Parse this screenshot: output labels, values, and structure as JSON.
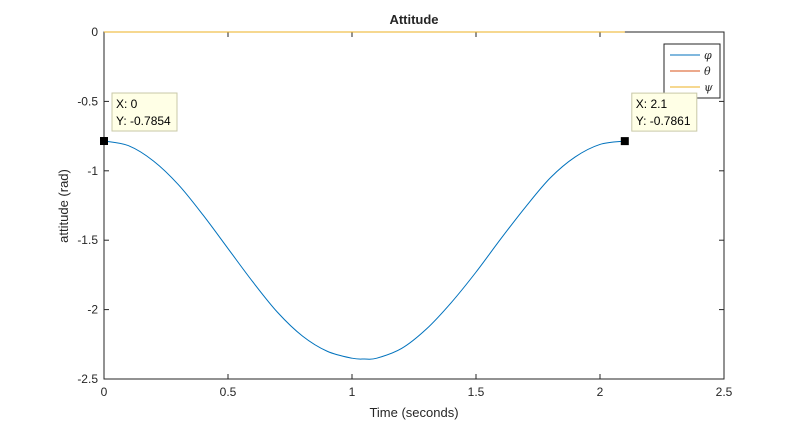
{
  "chart_data": {
    "type": "line",
    "title": "Attitude",
    "xlabel": "Time (seconds)",
    "ylabel": "attitude (rad)",
    "xlim": [
      0,
      2.5
    ],
    "ylim": [
      -2.5,
      0
    ],
    "x_ticks": [
      0,
      0.5,
      1,
      1.5,
      2,
      2.5
    ],
    "y_ticks": [
      0,
      -0.5,
      -1,
      -1.5,
      -2,
      -2.5
    ],
    "x_tick_labels": [
      "0",
      "0.5",
      "1",
      "1.5",
      "2",
      "2.5"
    ],
    "y_tick_labels": [
      "0",
      "-0.5",
      "-1",
      "-1.5",
      "-2",
      "-2.5"
    ],
    "grid": false,
    "legend_position": "top-right",
    "series": [
      {
        "name": "φ",
        "color": "#0072BD",
        "x": [
          0,
          0.1,
          0.2,
          0.3,
          0.4,
          0.5,
          0.6,
          0.7,
          0.8,
          0.9,
          1.0,
          1.05,
          1.1,
          1.2,
          1.3,
          1.4,
          1.5,
          1.6,
          1.7,
          1.8,
          1.9,
          2.0,
          2.1
        ],
        "y": [
          -0.7854,
          -0.82,
          -0.93,
          -1.1,
          -1.32,
          -1.56,
          -1.8,
          -2.02,
          -2.19,
          -2.3,
          -2.35,
          -2.356,
          -2.35,
          -2.28,
          -2.14,
          -1.95,
          -1.73,
          -1.49,
          -1.26,
          -1.05,
          -0.9,
          -0.81,
          -0.7861
        ]
      },
      {
        "name": "θ",
        "color": "#D95319",
        "x": [
          0,
          2.1
        ],
        "y": [
          0,
          0
        ]
      },
      {
        "name": "ψ",
        "color": "#EDB120",
        "x": [
          0,
          2.1
        ],
        "y": [
          0,
          0
        ]
      }
    ],
    "annotations": [
      {
        "x": 0,
        "y": -0.7854,
        "lines": [
          "X: 0",
          "Y: -0.7854"
        ]
      },
      {
        "x": 2.1,
        "y": -0.7861,
        "lines": [
          "X: 2.1",
          "Y: -0.7861"
        ]
      }
    ]
  }
}
